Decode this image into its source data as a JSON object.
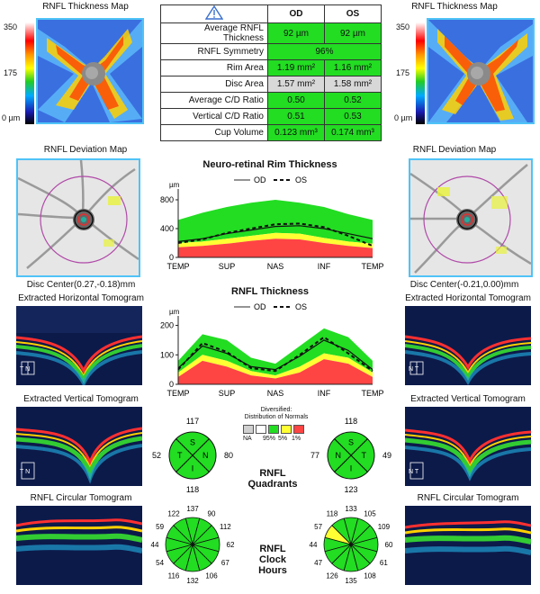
{
  "maps": {
    "left_title": "RNFL Thickness Map",
    "right_title": "RNFL Thickness Map",
    "scale_top": "350",
    "scale_mid": "175",
    "scale_bottom": "0 µm",
    "left_deviation_title": "RNFL Deviation Map",
    "right_deviation_title": "RNFL Deviation Map",
    "left_disc_center": "Disc Center(0.27,-0.18)mm",
    "right_disc_center": "Disc Center(-0.21,0.00)mm",
    "left_horizontal_title": "Extracted Horizontal Tomogram",
    "right_horizontal_title": "Extracted Horizontal Tomogram",
    "left_vertical_title": "Extracted Vertical Tomogram",
    "right_vertical_title": "Extracted Vertical Tomogram",
    "left_circular_title": "RNFL Circular Tomogram",
    "right_circular_title": "RNFL Circular Tomogram",
    "tomogram_tn_h_left": "T N",
    "tomogram_tn_h_right": "N T",
    "tomogram_tn_v_left": "T N",
    "tomogram_tn_v_right": "N T",
    "tomogram_letter_s": "S",
    "tomogram_letter_i": "I"
  },
  "params_table": {
    "col_od": "OD",
    "col_os": "OS",
    "rows": [
      {
        "name": "Average RNFL Thickness",
        "od": "92 µm",
        "os": "92 µm"
      },
      {
        "name": "RNFL Symmetry",
        "both": "96%"
      },
      {
        "name": "Rim Area",
        "od": "1.19 mm²",
        "os": "1.16 mm²"
      },
      {
        "name": "Disc Area",
        "od": "1.57 mm²",
        "os": "1.58 mm²"
      },
      {
        "name": "Average C/D Ratio",
        "od": "0.50",
        "os": "0.52"
      },
      {
        "name": "Vertical C/D Ratio",
        "od": "0.51",
        "os": "0.53"
      },
      {
        "name": "Cup Volume",
        "od": "0.123 mm³",
        "os": "0.174 mm³"
      }
    ]
  },
  "colors": {
    "green": "#22dd22",
    "yellow": "#ffff33",
    "red": "#ff4444",
    "gray": "#d8d8d8",
    "accent": "#4fc3f7"
  },
  "legend": {
    "title": "Diversified:",
    "subtitle": "Distribution of Normals",
    "na": "NA",
    "p95": "95%",
    "p5": "5%",
    "p1": "1%"
  },
  "section_labels": {
    "quadrants_line1": "RNFL",
    "quadrants_line2": "Quadrants",
    "clock_line1": "RNFL",
    "clock_line2": "Clock",
    "clock_line3": "Hours"
  },
  "chart_data": [
    {
      "type": "area",
      "title": "Neuro-retinal Rim Thickness",
      "ylabel": "µm",
      "legend": [
        "OD",
        "OS"
      ],
      "legend_placement": "top",
      "categories": [
        "TEMP",
        "SUP",
        "NAS",
        "INF",
        "TEMP"
      ],
      "yticks": [
        "0",
        "400",
        "800"
      ],
      "ylim": [
        0,
        900
      ],
      "grid": false,
      "x": [
        0,
        0.125,
        0.25,
        0.375,
        0.5,
        0.625,
        0.75,
        0.875,
        1.0
      ],
      "normals": {
        "p1_upper": [
          140,
          160,
          190,
          230,
          260,
          250,
          200,
          160,
          130
        ],
        "p5_upper": [
          200,
          220,
          260,
          300,
          340,
          330,
          270,
          220,
          190
        ],
        "p95_upper": [
          520,
          620,
          700,
          760,
          800,
          760,
          700,
          600,
          520
        ]
      },
      "series": [
        {
          "name": "OD",
          "values": [
            220,
            260,
            330,
            380,
            430,
            440,
            400,
            330,
            260
          ]
        },
        {
          "name": "OS",
          "values": [
            200,
            250,
            340,
            400,
            460,
            470,
            420,
            300,
            160
          ]
        }
      ]
    },
    {
      "type": "area",
      "title": "RNFL Thickness",
      "ylabel": "µm",
      "legend": [
        "OD",
        "OS"
      ],
      "legend_placement": "top",
      "categories": [
        "TEMP",
        "SUP",
        "NAS",
        "INF",
        "TEMP"
      ],
      "yticks": [
        "0",
        "100",
        "200"
      ],
      "ylim": [
        0,
        220
      ],
      "grid": false,
      "x": [
        0,
        0.125,
        0.25,
        0.375,
        0.5,
        0.625,
        0.75,
        0.875,
        1.0
      ],
      "normals": {
        "p1_upper": [
          25,
          80,
          60,
          30,
          20,
          40,
          85,
          70,
          25
        ],
        "p5_upper": [
          40,
          100,
          80,
          45,
          30,
          60,
          105,
          90,
          40
        ],
        "p95_upper": [
          80,
          170,
          150,
          90,
          70,
          130,
          190,
          160,
          80
        ]
      },
      "series": [
        {
          "name": "OD",
          "values": [
            55,
            130,
            105,
            60,
            50,
            95,
            150,
            115,
            50
          ]
        },
        {
          "name": "OS",
          "values": [
            50,
            140,
            110,
            55,
            45,
            100,
            160,
            105,
            45
          ]
        }
      ]
    },
    {
      "type": "pie",
      "title": "RNFL Quadrants OD",
      "categories": [
        "S",
        "N",
        "I",
        "T"
      ],
      "values": [
        117,
        80,
        118,
        52
      ],
      "status": [
        "normal",
        "normal",
        "normal",
        "normal"
      ]
    },
    {
      "type": "pie",
      "title": "RNFL Quadrants OS",
      "categories": [
        "S",
        "T",
        "I",
        "N"
      ],
      "values": [
        118,
        49,
        123,
        77
      ],
      "status": [
        "normal",
        "normal",
        "normal",
        "normal"
      ]
    },
    {
      "type": "pie",
      "title": "RNFL Clock Hours OD",
      "categories": [
        "12",
        "1",
        "2",
        "3",
        "4",
        "5",
        "6",
        "7",
        "8",
        "9",
        "10",
        "11"
      ],
      "values": [
        137,
        90,
        112,
        62,
        67,
        106,
        132,
        116,
        54,
        44,
        59,
        122
      ],
      "status": [
        "normal",
        "normal",
        "normal",
        "normal",
        "normal",
        "normal",
        "normal",
        "normal",
        "normal",
        "normal",
        "normal",
        "normal"
      ]
    },
    {
      "type": "pie",
      "title": "RNFL Clock Hours OS",
      "categories": [
        "12",
        "1",
        "2",
        "3",
        "4",
        "5",
        "6",
        "7",
        "8",
        "9",
        "10",
        "11"
      ],
      "values": [
        133,
        118,
        57,
        44,
        47,
        126,
        135,
        108,
        61,
        60,
        109,
        105
      ],
      "status": [
        "normal",
        "normal",
        "borderline",
        "normal",
        "normal",
        "normal",
        "normal",
        "normal",
        "normal",
        "normal",
        "normal",
        "normal"
      ]
    }
  ]
}
